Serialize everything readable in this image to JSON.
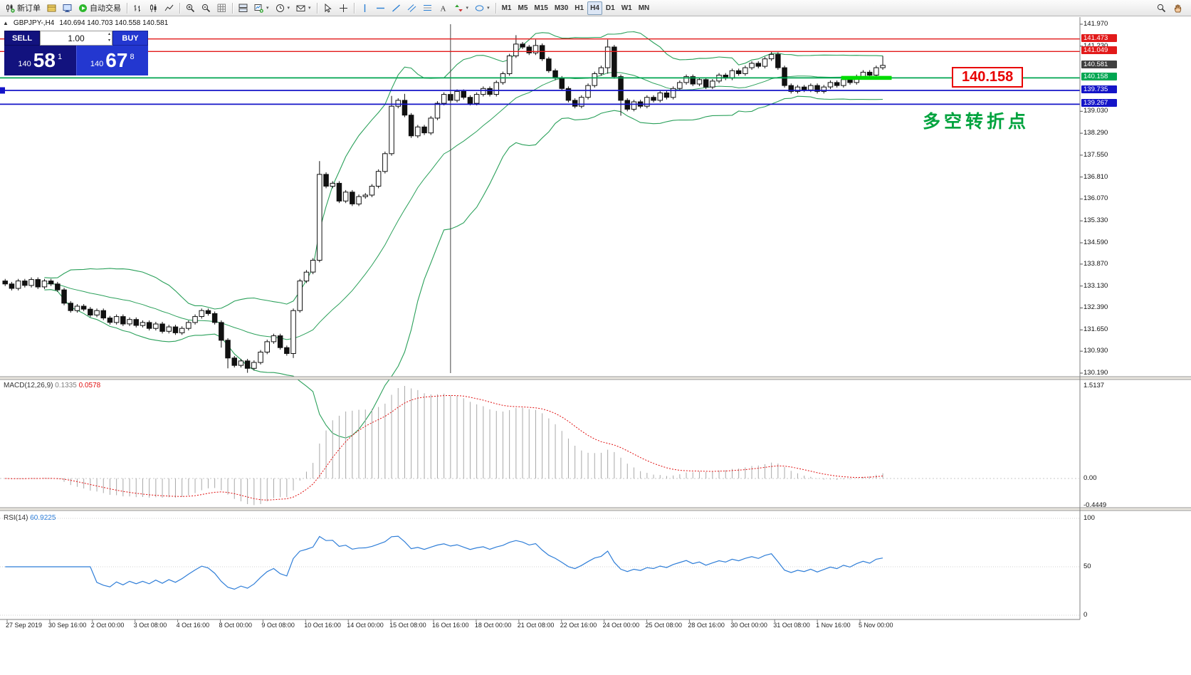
{
  "toolbar": {
    "groups": [
      {
        "name": "trade",
        "buttons": [
          {
            "name": "new-order-button",
            "icon": "new-order-icon",
            "label": "新订单"
          },
          {
            "name": "market-watch-button",
            "icon": "market-watch-icon"
          },
          {
            "name": "data-window-button",
            "icon": "data-window-icon"
          },
          {
            "name": "auto-trading-button",
            "icon": "play-icon",
            "label": "自动交易"
          }
        ]
      },
      {
        "name": "chart-type",
        "buttons": [
          {
            "name": "bar-chart-button",
            "icon": "chart-bars-icon"
          },
          {
            "name": "candlestick-chart-button",
            "icon": "chart-candles-icon"
          },
          {
            "name": "line-chart-button",
            "icon": "chart-line-icon"
          }
        ]
      },
      {
        "name": "zoom",
        "buttons": [
          {
            "name": "zoom-in-button",
            "icon": "zoom-in-icon"
          },
          {
            "name": "zoom-out-button",
            "icon": "zoom-out-icon"
          },
          {
            "name": "grid-button",
            "icon": "grid-icon"
          }
        ]
      },
      {
        "name": "windows",
        "buttons": [
          {
            "name": "tile-windows-button",
            "icon": "tile-windows-icon"
          },
          {
            "name": "new-chart-button",
            "icon": "new-chart-icon",
            "caret": true
          },
          {
            "name": "period-button",
            "icon": "clock-icon",
            "caret": true
          },
          {
            "name": "template-button",
            "icon": "mail-icon",
            "caret": true
          }
        ]
      },
      {
        "name": "cursor",
        "buttons": [
          {
            "name": "cursor-button",
            "icon": "cursor-icon"
          },
          {
            "name": "crosshair-button",
            "icon": "crosshair-icon"
          }
        ]
      },
      {
        "name": "objects",
        "buttons": [
          {
            "name": "vertical-line-button",
            "icon": "vline-icon"
          },
          {
            "name": "horizontal-line-button",
            "icon": "hline-icon"
          },
          {
            "name": "trendline-button",
            "icon": "trendline-icon"
          },
          {
            "name": "channel-button",
            "icon": "channel-icon"
          },
          {
            "name": "fibonacci-button",
            "icon": "fibo-icon"
          },
          {
            "name": "text-button",
            "icon": "text-icon"
          },
          {
            "name": "arrows-button",
            "icon": "arrows-icon",
            "caret": true
          },
          {
            "name": "shapes-button",
            "icon": "shapes-icon",
            "caret": true
          }
        ]
      },
      {
        "name": "timeframes",
        "buttons": [
          {
            "name": "timeframe-m1",
            "text": "M1"
          },
          {
            "name": "timeframe-m5",
            "text": "M5"
          },
          {
            "name": "timeframe-m15",
            "text": "M15"
          },
          {
            "name": "timeframe-m30",
            "text": "M30"
          },
          {
            "name": "timeframe-h1",
            "text": "H1"
          },
          {
            "name": "timeframe-h4",
            "text": "H4",
            "active": true
          },
          {
            "name": "timeframe-d1",
            "text": "D1"
          },
          {
            "name": "timeframe-w1",
            "text": "W1"
          },
          {
            "name": "timeframe-mn",
            "text": "MN"
          }
        ]
      }
    ],
    "right_buttons": [
      {
        "name": "search-button",
        "icon": "search-icon"
      },
      {
        "name": "hand-button",
        "icon": "hand-icon"
      }
    ]
  },
  "chart_header": {
    "collapse_icon": "▲",
    "symbol": "GBPJPY-,H4",
    "ohlc": "140.694 140.703 140.558 140.581"
  },
  "trade_panel": {
    "sell_label": "SELL",
    "buy_label": "BUY",
    "volume": "1.00",
    "spin_up": "▴",
    "spin_down": "▾",
    "sell_price_prefix": "140",
    "sell_price_big": "58",
    "sell_price_sup": "1",
    "buy_price_prefix": "140",
    "buy_price_big": "67",
    "buy_price_sup": "8"
  },
  "annotations": {
    "price_callout": "140.158",
    "turning_point_text": "多空转折点"
  },
  "price_axis": {
    "plain_ticks": [
      {
        "label": "141.970",
        "price": 141.97
      },
      {
        "label": "141.230",
        "price": 141.23
      },
      {
        "label": "139.030",
        "price": 139.03
      },
      {
        "label": "138.290",
        "price": 138.29
      },
      {
        "label": "137.550",
        "price": 137.55
      },
      {
        "label": "136.810",
        "price": 136.81
      },
      {
        "label": "136.070",
        "price": 136.07
      },
      {
        "label": "135.330",
        "price": 135.33
      },
      {
        "label": "134.590",
        "price": 134.59
      },
      {
        "label": "133.870",
        "price": 133.87
      },
      {
        "label": "133.130",
        "price": 133.13
      },
      {
        "label": "132.390",
        "price": 132.39
      },
      {
        "label": "131.650",
        "price": 131.65
      },
      {
        "label": "130.930",
        "price": 130.93
      },
      {
        "label": "130.190",
        "price": 130.19
      }
    ],
    "line_labels": [
      {
        "label": "141.473",
        "price": 141.473,
        "bg": "#e21a1a"
      },
      {
        "label": "141.049",
        "price": 141.049,
        "bg": "#e21a1a"
      },
      {
        "label": "140.581",
        "price": 140.581,
        "bg": "#404040"
      },
      {
        "label": "140.158",
        "price": 140.158,
        "bg": "#00a651"
      },
      {
        "label": "139.735",
        "price": 139.735,
        "bg": "#1414c8"
      },
      {
        "label": "139.267",
        "price": 139.267,
        "bg": "#1414c8"
      }
    ]
  },
  "macd_panel": {
    "name": "MACD(12,26,9)",
    "value_macd": "0.1335",
    "value_signal": "0.0578",
    "axis": [
      {
        "label": "1.5137",
        "value": 1.5137
      },
      {
        "label": "0.00",
        "value": 0
      },
      {
        "label": "-0.4449",
        "value": -0.4449
      }
    ]
  },
  "rsi_panel": {
    "name": "RSI(14)",
    "value": "60.9225",
    "axis": [
      {
        "label": "100",
        "value": 100
      },
      {
        "label": "50",
        "value": 50
      },
      {
        "label": "0",
        "value": 0
      }
    ]
  },
  "time_axis": [
    "27 Sep 2019",
    "30 Sep 16:00",
    "2 Oct 00:00",
    "3 Oct 08:00",
    "4 Oct 16:00",
    "8 Oct 00:00",
    "9 Oct 08:00",
    "10 Oct 16:00",
    "14 Oct 00:00",
    "15 Oct 08:00",
    "16 Oct 16:00",
    "18 Oct 00:00",
    "21 Oct 08:00",
    "22 Oct 16:00",
    "24 Oct 00:00",
    "25 Oct 08:00",
    "28 Oct 16:00",
    "30 Oct 00:00",
    "31 Oct 08:00",
    "1 Nov 16:00",
    "5 Nov 00:00"
  ],
  "chart_data": {
    "type": "candlestick",
    "symbol": "GBPJPY",
    "timeframe": "H4",
    "price_axis_range": [
      130.19,
      141.97
    ],
    "first_open": 133.3,
    "closes": [
      133.2,
      133.05,
      133.3,
      133.15,
      133.35,
      133.1,
      133.3,
      133.2,
      133.0,
      132.55,
      132.3,
      132.45,
      132.35,
      132.15,
      132.3,
      132.05,
      131.9,
      132.1,
      131.85,
      132.0,
      131.8,
      131.9,
      131.7,
      131.85,
      131.6,
      131.75,
      131.55,
      131.7,
      131.9,
      132.1,
      132.3,
      132.2,
      131.9,
      131.3,
      130.7,
      130.45,
      130.6,
      130.35,
      130.55,
      130.9,
      131.25,
      131.45,
      131.05,
      130.85,
      132.3,
      133.3,
      133.6,
      134.0,
      136.9,
      136.5,
      136.6,
      136.0,
      136.3,
      135.9,
      136.15,
      136.2,
      136.5,
      137.0,
      137.6,
      139.2,
      139.4,
      138.9,
      138.2,
      138.5,
      138.3,
      138.8,
      139.3,
      139.6,
      139.4,
      139.7,
      139.5,
      139.3,
      139.6,
      139.8,
      139.6,
      140.0,
      140.3,
      140.9,
      141.3,
      141.2,
      141.0,
      141.25,
      140.8,
      140.4,
      140.15,
      139.8,
      139.4,
      139.2,
      139.5,
      139.9,
      140.3,
      140.5,
      141.2,
      140.2,
      139.4,
      139.1,
      139.35,
      139.2,
      139.5,
      139.4,
      139.65,
      139.5,
      139.8,
      140.0,
      140.2,
      139.95,
      140.1,
      139.85,
      140.05,
      140.25,
      140.15,
      140.4,
      140.3,
      140.5,
      140.65,
      140.55,
      140.8,
      140.95,
      140.5,
      139.9,
      139.7,
      139.85,
      139.75,
      139.9,
      139.7,
      139.85,
      140.0,
      139.9,
      140.1,
      140.0,
      140.2,
      140.35,
      140.25,
      140.5,
      140.58
    ],
    "default_wick": 0.07,
    "wick_overrides": {
      "33": {
        "low": 131.05
      },
      "34": {
        "low": 130.35
      },
      "37": {
        "low": 130.2
      },
      "44": {
        "low": 130.7
      },
      "48": {
        "high": 137.35
      },
      "59": {
        "high": 139.55
      },
      "61": {
        "high": 139.62
      },
      "78": {
        "high": 141.6
      },
      "81": {
        "high": 141.45
      },
      "92": {
        "high": 141.45,
        "low": 140.3
      },
      "94": {
        "low": 138.88
      },
      "117": {
        "high": 141.05
      },
      "134": {
        "high": 140.9
      }
    },
    "indicators": {
      "bollinger": {
        "period": 20,
        "deviation": 2,
        "color": "#2aa05a"
      },
      "macd": {
        "fast": 12,
        "slow": 26,
        "signal": 9,
        "histogram_color": "#a8a8a8",
        "signal_color": "#e01010",
        "axis_max": 1.5137,
        "axis_min": -0.4449
      },
      "rsi": {
        "period": 14,
        "color": "#2f7ed8"
      }
    },
    "hlines": [
      {
        "price": 141.473,
        "color": "#e21a1a",
        "width": 1.4
      },
      {
        "price": 141.049,
        "color": "#e21a1a",
        "width": 1.4
      },
      {
        "price": 140.158,
        "color": "#00a651",
        "width": 1.8
      },
      {
        "price": 139.735,
        "color": "#1414c8",
        "width": 1.8
      },
      {
        "price": 139.267,
        "color": "#1414c8",
        "width": 1.8
      }
    ],
    "vline_index": 68,
    "highlight_segment": {
      "price": 140.158,
      "from_index": 128,
      "to_index": 135,
      "color": "#00dc00",
      "width": 5.5
    }
  }
}
